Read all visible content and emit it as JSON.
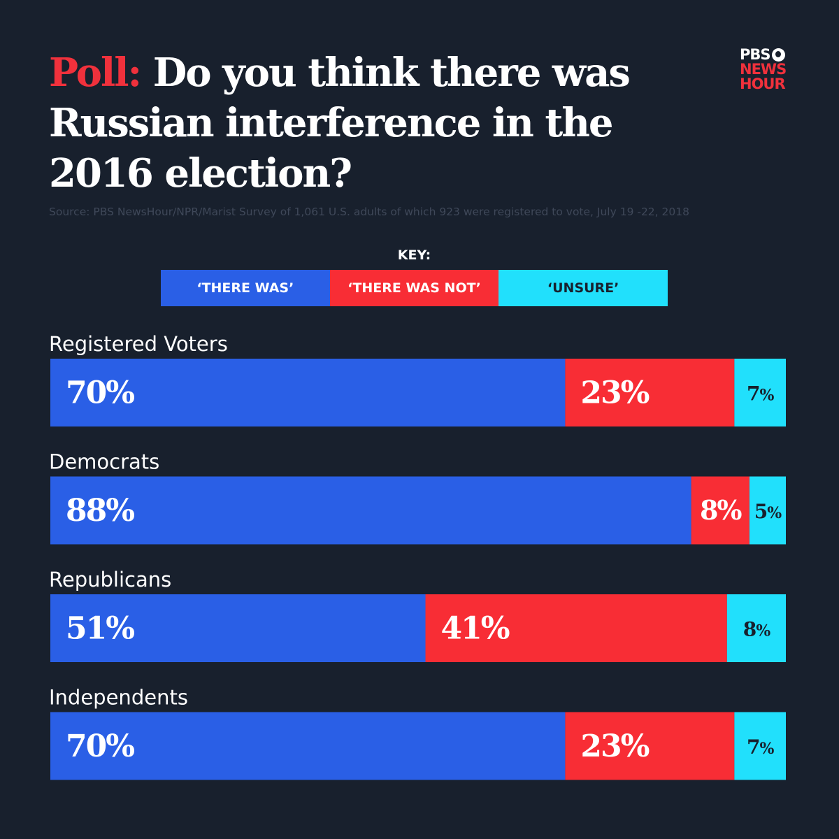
{
  "title": {
    "prefix": "Poll:",
    "text": "Do you think there was Russian interference in the 2016 election?"
  },
  "logo": {
    "line1": "PBS",
    "line2": "NEWS",
    "line3": "HOUR"
  },
  "source": "Source: PBS NewsHour/NPR/Marist  Survey of 1,061 U.S. adults of which 923 were registered to vote,  July 19 -22, 2018",
  "key": {
    "label": "KEY:",
    "items": [
      "‘THERE WAS’",
      "‘THERE WAS NOT’",
      "‘UNSURE’"
    ]
  },
  "colors": {
    "background": "#18202d",
    "there_was": "#2a5fe6",
    "there_was_not": "#f82d35",
    "unsure": "#21e0fc",
    "accent": "#f0313c"
  },
  "chart_data": {
    "type": "bar",
    "orientation": "horizontal",
    "stacked": true,
    "title": "Poll: Do you think there was Russian interference in the 2016 election?",
    "categories": [
      "Registered Voters",
      "Democrats",
      "Republicans",
      "Independents"
    ],
    "series": [
      {
        "name": "‘THERE WAS’",
        "values": [
          70,
          88,
          51,
          70
        ]
      },
      {
        "name": "‘THERE WAS NOT’",
        "values": [
          23,
          8,
          41,
          23
        ]
      },
      {
        "name": "‘UNSURE’",
        "values": [
          7,
          5,
          8,
          7
        ]
      }
    ],
    "unit": "%",
    "xlim": [
      0,
      100
    ],
    "legend": "top-center"
  }
}
